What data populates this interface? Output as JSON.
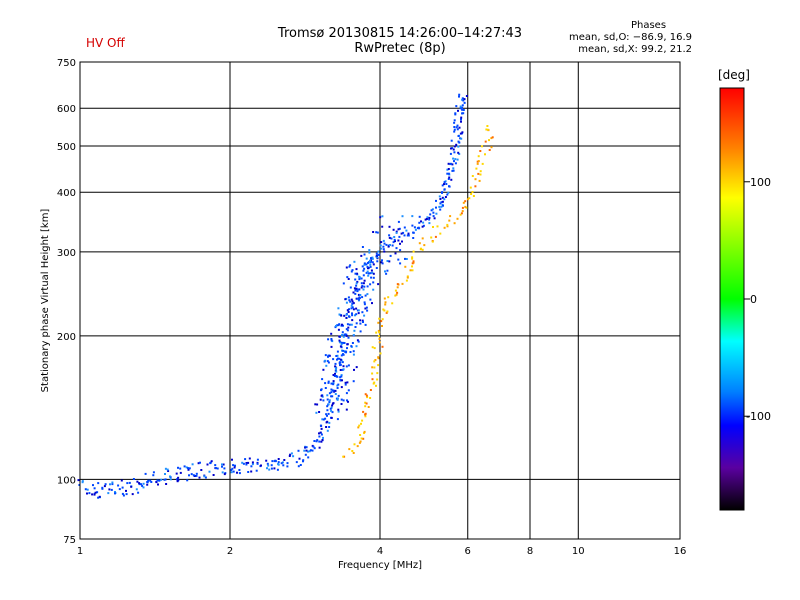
{
  "header": {
    "status": "HV Off",
    "title_line1": "Tromsø 20130815 14:26:00–14:27:43",
    "title_line2": "RwPretec (8p)",
    "stats_header": "Phases",
    "stats_line1": "mean, sd,O: −86.9, 16.9",
    "stats_line2": "mean, sd,X:  99.2, 21.2"
  },
  "colors": {
    "color_scale": "rainbow",
    "status": "#d40000"
  },
  "chart_data": {
    "type": "scatter",
    "xlabel": "Frequency [MHz]",
    "ylabel": "Stationary phase Virtual Height [km]",
    "xscale": "log",
    "yscale": "log",
    "xlim": [
      1,
      16
    ],
    "ylim": [
      75,
      750
    ],
    "xticks": [
      1,
      2,
      4,
      6,
      8,
      10,
      16
    ],
    "yticks": [
      75,
      100,
      200,
      300,
      400,
      500,
      600,
      750
    ],
    "grid": true,
    "colorbar": {
      "title": "[deg]",
      "range": [
        -180,
        180
      ],
      "ticks": [
        100,
        0,
        -100
      ],
      "position": "right"
    },
    "o_trace": [
      {
        "x": 1.0,
        "y": 97
      },
      {
        "x": 1.1,
        "y": 95
      },
      {
        "x": 1.2,
        "y": 96
      },
      {
        "x": 1.3,
        "y": 98
      },
      {
        "x": 1.4,
        "y": 101
      },
      {
        "x": 1.55,
        "y": 103
      },
      {
        "x": 1.7,
        "y": 105
      },
      {
        "x": 1.9,
        "y": 106
      },
      {
        "x": 2.1,
        "y": 107
      },
      {
        "x": 2.35,
        "y": 108
      },
      {
        "x": 2.6,
        "y": 110
      },
      {
        "x": 2.8,
        "y": 113
      },
      {
        "x": 2.95,
        "y": 118
      },
      {
        "x": 3.05,
        "y": 125
      },
      {
        "x": 3.15,
        "y": 140
      },
      {
        "x": 3.25,
        "y": 160
      },
      {
        "x": 3.35,
        "y": 190
      },
      {
        "x": 3.5,
        "y": 230
      },
      {
        "x": 3.65,
        "y": 260
      },
      {
        "x": 3.8,
        "y": 285
      },
      {
        "x": 4.0,
        "y": 305
      },
      {
        "x": 4.3,
        "y": 322
      },
      {
        "x": 4.7,
        "y": 338
      },
      {
        "x": 5.0,
        "y": 355
      },
      {
        "x": 5.3,
        "y": 385
      },
      {
        "x": 5.5,
        "y": 430
      },
      {
        "x": 5.65,
        "y": 500
      },
      {
        "x": 5.75,
        "y": 580
      },
      {
        "x": 5.82,
        "y": 650
      }
    ],
    "x_trace": [
      {
        "x": 3.4,
        "y": 112
      },
      {
        "x": 3.6,
        "y": 120
      },
      {
        "x": 3.75,
        "y": 140
      },
      {
        "x": 3.9,
        "y": 175
      },
      {
        "x": 4.0,
        "y": 215
      },
      {
        "x": 4.2,
        "y": 245
      },
      {
        "x": 4.4,
        "y": 262
      },
      {
        "x": 4.6,
        "y": 280
      },
      {
        "x": 4.8,
        "y": 305
      },
      {
        "x": 5.0,
        "y": 320
      },
      {
        "x": 5.3,
        "y": 335
      },
      {
        "x": 5.6,
        "y": 350
      },
      {
        "x": 5.9,
        "y": 375
      },
      {
        "x": 6.2,
        "y": 420
      },
      {
        "x": 6.5,
        "y": 500
      },
      {
        "x": 6.65,
        "y": 560
      }
    ]
  }
}
